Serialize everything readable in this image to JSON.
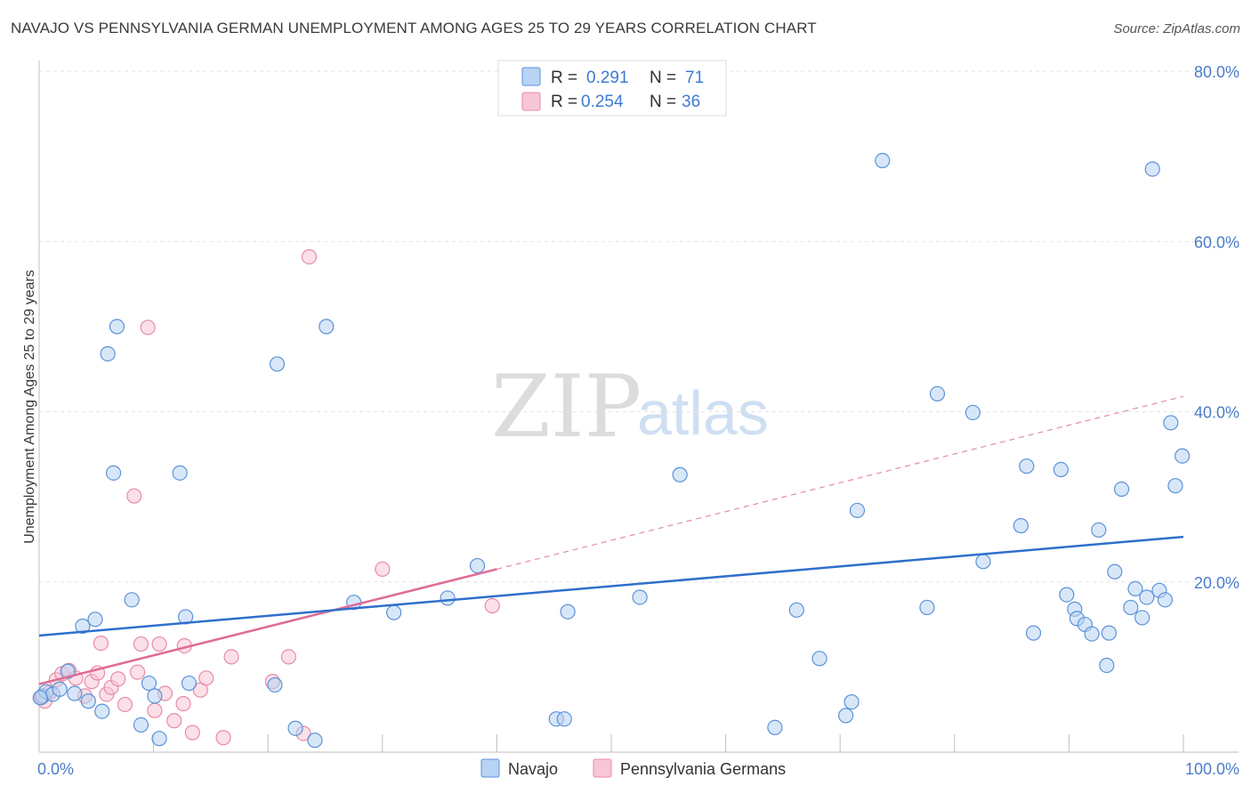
{
  "title": "NAVAJO VS PENNSYLVANIA GERMAN UNEMPLOYMENT AMONG AGES 25 TO 29 YEARS CORRELATION CHART",
  "source": "Source: ZipAtlas.com",
  "watermark": {
    "zip": "ZIP",
    "atlas": "atlas"
  },
  "colors": {
    "navajo_fill": "#b8d3f3",
    "navajo_stroke": "#5b92d8",
    "navajo_line": "#2f6fcc",
    "penn_fill": "#f8c7d5",
    "penn_stroke": "#e98aa8",
    "penn_line": "#e06b95",
    "grid": "#e3e3e3",
    "tick_text": "#4a7cc9"
  },
  "legend": {
    "r_label": "R =",
    "n_label": "N =",
    "navajo": {
      "r": "0.291",
      "n": "71"
    },
    "penn": {
      "r": "0.254",
      "n": "36"
    }
  },
  "bottom_legend": [
    "Navajo",
    "Pennsylvania Germans"
  ],
  "chart_data": {
    "type": "scatter",
    "title": "NAVAJO VS PENNSYLVANIA GERMAN UNEMPLOYMENT AMONG AGES 25 TO 29 YEARS CORRELATION CHART",
    "xlabel": "",
    "ylabel": "Unemployment Among Ages 25 to 29 years",
    "xlim": [
      0,
      100
    ],
    "ylim": [
      0,
      80
    ],
    "x_tick_labels": [
      "0.0%",
      "100.0%"
    ],
    "y_ticks": [
      20,
      40,
      60,
      80
    ],
    "y_tick_labels": [
      "20.0%",
      "40.0%",
      "60.0%",
      "80.0%"
    ],
    "grid": true,
    "series": [
      {
        "name": "Navajo",
        "r": 0.291,
        "n": 71,
        "trend": {
          "x": [
            0,
            100
          ],
          "y": [
            13.7,
            25.3
          ],
          "dashed_extension": false
        },
        "points": [
          [
            0.3,
            6.6
          ],
          [
            0.6,
            7.1
          ],
          [
            1.2,
            6.8
          ],
          [
            1.8,
            7.4
          ],
          [
            2.5,
            9.5
          ],
          [
            3.1,
            6.9
          ],
          [
            3.8,
            14.8
          ],
          [
            4.3,
            6.0
          ],
          [
            4.9,
            15.6
          ],
          [
            5.5,
            4.8
          ],
          [
            6.0,
            46.8
          ],
          [
            6.5,
            32.8
          ],
          [
            6.8,
            50.0
          ],
          [
            8.1,
            17.9
          ],
          [
            8.9,
            3.2
          ],
          [
            9.6,
            8.1
          ],
          [
            10.1,
            6.6
          ],
          [
            10.5,
            1.6
          ],
          [
            12.3,
            32.8
          ],
          [
            12.8,
            15.9
          ],
          [
            13.1,
            8.1
          ],
          [
            20.6,
            7.9
          ],
          [
            20.8,
            45.6
          ],
          [
            22.4,
            2.8
          ],
          [
            24.1,
            1.4
          ],
          [
            25.1,
            50.0
          ],
          [
            27.5,
            17.6
          ],
          [
            31.0,
            16.4
          ],
          [
            35.7,
            18.1
          ],
          [
            38.3,
            21.9
          ],
          [
            45.2,
            3.9
          ],
          [
            45.9,
            3.9
          ],
          [
            46.2,
            16.5
          ],
          [
            52.5,
            18.2
          ],
          [
            56.0,
            32.6
          ],
          [
            64.3,
            2.9
          ],
          [
            66.2,
            16.7
          ],
          [
            68.2,
            11.0
          ],
          [
            70.5,
            4.3
          ],
          [
            71.0,
            5.9
          ],
          [
            71.5,
            28.4
          ],
          [
            73.7,
            69.5
          ],
          [
            77.6,
            17.0
          ],
          [
            78.5,
            42.1
          ],
          [
            81.6,
            39.9
          ],
          [
            82.5,
            22.4
          ],
          [
            85.8,
            26.6
          ],
          [
            86.3,
            33.6
          ],
          [
            86.9,
            14.0
          ],
          [
            89.3,
            33.2
          ],
          [
            89.8,
            18.5
          ],
          [
            90.5,
            16.8
          ],
          [
            90.7,
            15.7
          ],
          [
            91.4,
            15.0
          ],
          [
            92.0,
            13.9
          ],
          [
            92.6,
            26.1
          ],
          [
            93.3,
            10.2
          ],
          [
            93.5,
            14.0
          ],
          [
            94.0,
            21.2
          ],
          [
            94.6,
            30.9
          ],
          [
            95.4,
            17.0
          ],
          [
            95.8,
            19.2
          ],
          [
            96.4,
            15.8
          ],
          [
            96.8,
            18.2
          ],
          [
            97.3,
            68.5
          ],
          [
            97.9,
            19.0
          ],
          [
            98.4,
            17.9
          ],
          [
            98.9,
            38.7
          ],
          [
            99.3,
            31.3
          ],
          [
            99.9,
            34.8
          ],
          [
            0.1,
            6.4
          ]
        ]
      },
      {
        "name": "Pennsylvania Germans",
        "r": 0.254,
        "n": 36,
        "trend": {
          "x": [
            0,
            40
          ],
          "y": [
            8.0,
            21.5
          ],
          "dashed_extension": {
            "x": [
              40,
              100
            ],
            "y": [
              21.5,
              41.8
            ]
          }
        },
        "points": [
          [
            0.2,
            6.4
          ],
          [
            0.9,
            7.0
          ],
          [
            1.5,
            8.5
          ],
          [
            2.0,
            9.2
          ],
          [
            2.6,
            9.6
          ],
          [
            3.2,
            8.7
          ],
          [
            4.0,
            6.6
          ],
          [
            4.6,
            8.3
          ],
          [
            5.1,
            9.3
          ],
          [
            5.4,
            12.8
          ],
          [
            5.9,
            6.8
          ],
          [
            6.3,
            7.6
          ],
          [
            6.9,
            8.6
          ],
          [
            7.5,
            5.6
          ],
          [
            8.3,
            30.1
          ],
          [
            8.6,
            9.4
          ],
          [
            8.9,
            12.7
          ],
          [
            9.5,
            49.9
          ],
          [
            10.1,
            4.9
          ],
          [
            10.5,
            12.7
          ],
          [
            11.0,
            6.9
          ],
          [
            11.8,
            3.7
          ],
          [
            12.6,
            5.7
          ],
          [
            12.7,
            12.5
          ],
          [
            13.4,
            2.3
          ],
          [
            14.1,
            7.3
          ],
          [
            14.6,
            8.7
          ],
          [
            16.1,
            1.7
          ],
          [
            16.8,
            11.2
          ],
          [
            20.4,
            8.3
          ],
          [
            21.8,
            11.2
          ],
          [
            23.1,
            2.2
          ],
          [
            23.6,
            58.2
          ],
          [
            30.0,
            21.5
          ],
          [
            39.6,
            17.2
          ],
          [
            0.5,
            6.0
          ]
        ]
      }
    ]
  }
}
